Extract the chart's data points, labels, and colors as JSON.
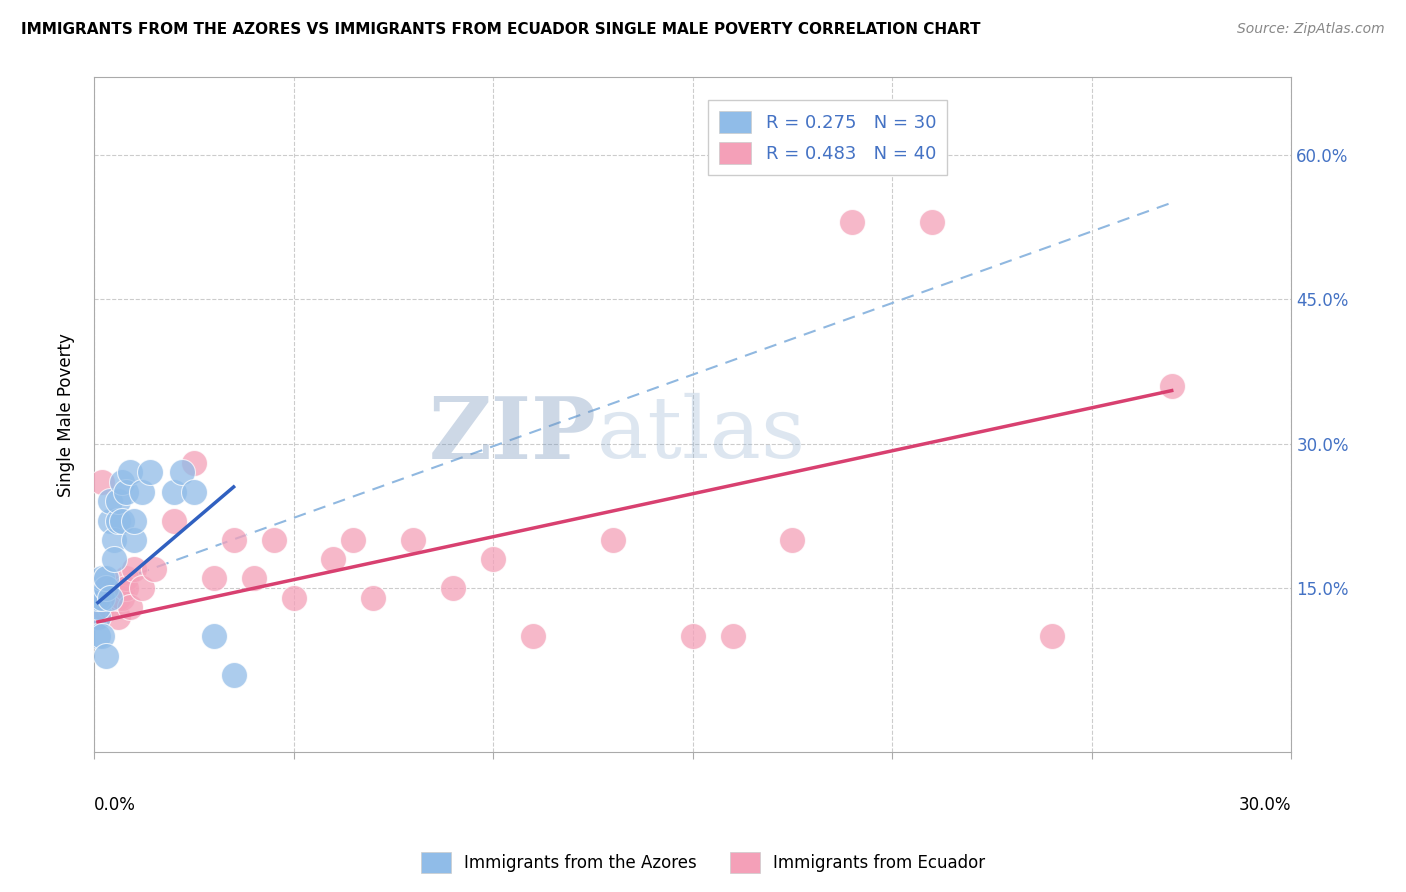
{
  "title": "IMMIGRANTS FROM THE AZORES VS IMMIGRANTS FROM ECUADOR SINGLE MALE POVERTY CORRELATION CHART",
  "source": "Source: ZipAtlas.com",
  "ylabel": "Single Male Poverty",
  "y_tick_labels_right": [
    "15.0%",
    "30.0%",
    "45.0%",
    "60.0%"
  ],
  "xlim": [
    0.0,
    0.3
  ],
  "ylim": [
    -0.02,
    0.68
  ],
  "legend1_r": "0.275",
  "legend1_n": "30",
  "legend2_r": "0.483",
  "legend2_n": "40",
  "watermark": "ZIPatlas",
  "watermark_color": "#b8d4f0",
  "azores_color": "#90bce8",
  "ecuador_color": "#f4a0b8",
  "azores_line_color": "#3060c0",
  "ecuador_line_color": "#d84070",
  "dashed_line_color": "#90b8e0",
  "azores_x": [
    0.001,
    0.001,
    0.001,
    0.001,
    0.002,
    0.002,
    0.002,
    0.003,
    0.003,
    0.003,
    0.004,
    0.004,
    0.004,
    0.005,
    0.005,
    0.006,
    0.006,
    0.007,
    0.007,
    0.008,
    0.009,
    0.01,
    0.01,
    0.012,
    0.014,
    0.02,
    0.022,
    0.025,
    0.03,
    0.035
  ],
  "azores_y": [
    0.12,
    0.13,
    0.14,
    0.1,
    0.14,
    0.16,
    0.1,
    0.15,
    0.16,
    0.08,
    0.22,
    0.24,
    0.14,
    0.2,
    0.18,
    0.22,
    0.24,
    0.26,
    0.22,
    0.25,
    0.27,
    0.2,
    0.22,
    0.25,
    0.27,
    0.25,
    0.27,
    0.25,
    0.1,
    0.06
  ],
  "ecuador_x": [
    0.001,
    0.002,
    0.002,
    0.003,
    0.003,
    0.004,
    0.004,
    0.005,
    0.006,
    0.006,
    0.007,
    0.007,
    0.008,
    0.008,
    0.009,
    0.01,
    0.012,
    0.015,
    0.02,
    0.025,
    0.03,
    0.035,
    0.04,
    0.045,
    0.05,
    0.06,
    0.065,
    0.07,
    0.08,
    0.09,
    0.1,
    0.11,
    0.13,
    0.15,
    0.16,
    0.175,
    0.19,
    0.21,
    0.24,
    0.27
  ],
  "ecuador_y": [
    0.12,
    0.13,
    0.26,
    0.14,
    0.15,
    0.14,
    0.13,
    0.15,
    0.12,
    0.14,
    0.15,
    0.14,
    0.16,
    0.15,
    0.13,
    0.17,
    0.15,
    0.17,
    0.22,
    0.28,
    0.16,
    0.2,
    0.16,
    0.2,
    0.14,
    0.18,
    0.2,
    0.14,
    0.2,
    0.15,
    0.18,
    0.1,
    0.2,
    0.1,
    0.1,
    0.2,
    0.53,
    0.53,
    0.1,
    0.36
  ],
  "azores_line_x": [
    0.001,
    0.035
  ],
  "azores_line_y": [
    0.135,
    0.255
  ],
  "ecuador_line_x": [
    0.001,
    0.27
  ],
  "ecuador_line_y": [
    0.115,
    0.355
  ],
  "dashed_line_x": [
    0.001,
    0.27
  ],
  "dashed_line_y": [
    0.15,
    0.55
  ]
}
